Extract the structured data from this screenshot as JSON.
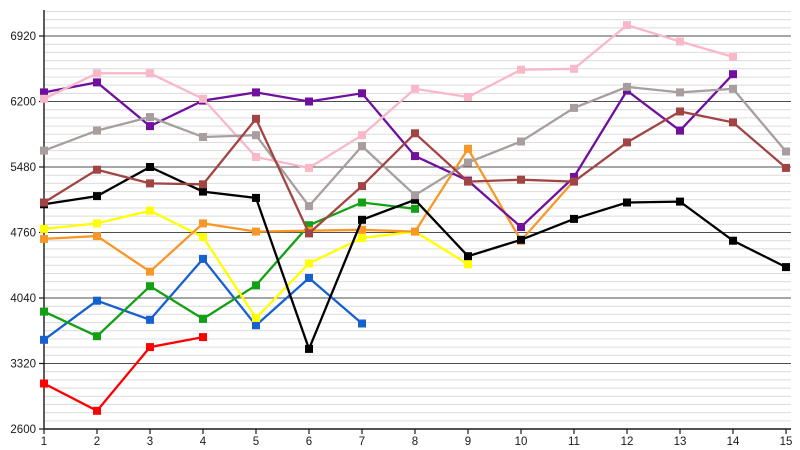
{
  "chart_data": {
    "type": "line",
    "title": "",
    "xlabel": "",
    "ylabel": "",
    "x": [
      1,
      2,
      3,
      4,
      5,
      6,
      7,
      8,
      9,
      10,
      11,
      12,
      13,
      14,
      15
    ],
    "x_tick_labels": [
      "1",
      "2",
      "3",
      "4",
      "5",
      "6",
      "7",
      "8",
      "9",
      "10",
      "11",
      "12",
      "13",
      "14",
      "15"
    ],
    "y_tick_labels": [
      "2600",
      "3320",
      "4040",
      "4760",
      "5480",
      "6200",
      "6920"
    ],
    "y_ticks": [
      2600,
      3320,
      4040,
      4760,
      5480,
      6200,
      6920
    ],
    "y_minor_step": 90,
    "ylim": [
      2600,
      7190
    ],
    "grid": "horizontal, minor light + major dark",
    "legend": "none",
    "marker": "square",
    "series": [
      {
        "name": "red",
        "color": "#FE0000",
        "values": [
          3100,
          2800,
          3500,
          3610
        ]
      },
      {
        "name": "blue",
        "color": "#1760D0",
        "values": [
          3580,
          4010,
          3800,
          4470,
          3740,
          4260,
          3760
        ]
      },
      {
        "name": "green",
        "color": "#14A014",
        "values": [
          3890,
          3620,
          4170,
          3810,
          4180,
          4840,
          5090,
          5020
        ]
      },
      {
        "name": "yellow",
        "color": "#FFFF00",
        "values": [
          4800,
          4860,
          5000,
          4710,
          3820,
          4420,
          4700,
          4770,
          4410
        ]
      },
      {
        "name": "orange",
        "color": "#F89728",
        "values": [
          4690,
          4720,
          4330,
          4860,
          4770,
          4780,
          4790,
          4770,
          5680,
          4670,
          5330
        ]
      },
      {
        "name": "black",
        "color": "#000000",
        "values": [
          5070,
          5160,
          5480,
          5210,
          5140,
          3480,
          4900,
          5120,
          4500,
          4680,
          4910,
          5090,
          5100,
          4670,
          4380
        ]
      },
      {
        "name": "purple",
        "color": "#70109E",
        "values": [
          6300,
          6410,
          5930,
          6210,
          6300,
          6200,
          6290,
          5600,
          5330,
          4820,
          5370,
          6320,
          5880,
          6500
        ]
      },
      {
        "name": "pink",
        "color": "#F8B8C8",
        "values": [
          6230,
          6510,
          6510,
          6230,
          5590,
          5470,
          5830,
          6340,
          6250,
          6550,
          6560,
          7040,
          6860,
          6690
        ]
      },
      {
        "name": "gray",
        "color": "#A89E9E",
        "values": [
          5660,
          5880,
          6030,
          5810,
          5830,
          5050,
          5710,
          5170,
          5530,
          5760,
          6130,
          6360,
          6300,
          6340,
          5650
        ]
      },
      {
        "name": "darkred",
        "color": "#A34444",
        "values": [
          5090,
          5450,
          5300,
          5290,
          6010,
          4750,
          5270,
          5850,
          5320,
          5340,
          5320,
          5750,
          6090,
          5970,
          5470
        ]
      }
    ]
  },
  "style_colors": {
    "axis": "#1a1a1a",
    "major_grid": "#4d4d4d",
    "minor_grid": "#dcdcdc",
    "background": "#ffffff"
  }
}
